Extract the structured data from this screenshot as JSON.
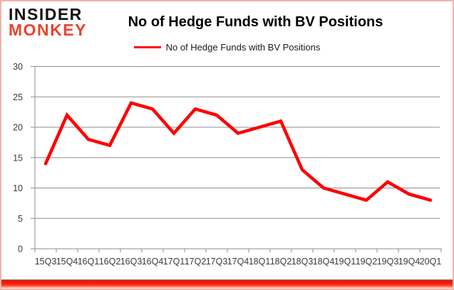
{
  "logo": {
    "line1": "INSIDER",
    "line2": "MONKEY",
    "line1_color": "#111111",
    "line2_color": "#e8432d"
  },
  "header": {
    "title": "No of Hedge Funds with BV Positions"
  },
  "legend": {
    "label": "No of Hedge Funds with BV Positions",
    "line_color": "#fe0000"
  },
  "chart_data": {
    "type": "line",
    "title": "No of Hedge Funds with BV Positions",
    "categories": [
      "15Q3",
      "15Q4",
      "16Q1",
      "16Q2",
      "16Q3",
      "16Q4",
      "17Q1",
      "17Q2",
      "17Q3",
      "17Q4",
      "18Q1",
      "18Q2",
      "18Q3",
      "18Q4",
      "19Q1",
      "19Q2",
      "19Q3",
      "19Q4",
      "20Q1"
    ],
    "values": [
      14,
      22,
      18,
      17,
      24,
      23,
      19,
      23,
      22,
      19,
      20,
      21,
      13,
      10,
      9,
      8,
      11,
      9,
      8
    ],
    "xlabel": "",
    "ylabel": "",
    "ylim": [
      0,
      30
    ],
    "yticks": [
      0,
      5,
      10,
      15,
      20,
      25,
      30
    ],
    "grid": true,
    "legend_position": "top",
    "series_color": "#fe0000",
    "grid_color": "#8e8e8e",
    "axis_color": "#8e8e8e",
    "tick_label_color": "#3b3b3b"
  },
  "frame": {
    "border_color": "#f2b3a9",
    "footer_bar_color": "#ff1400",
    "footer_line_color": "#8a8a8a"
  }
}
